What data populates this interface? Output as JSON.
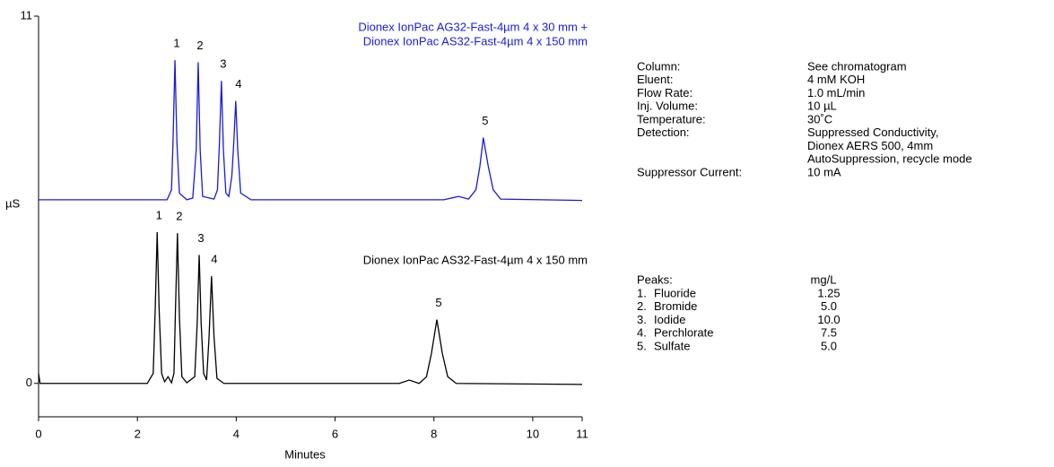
{
  "chart_data": {
    "type": "line",
    "xlabel": "Minutes",
    "ylabel": "µS",
    "xlim": [
      0,
      11
    ],
    "xticks": [
      0,
      2,
      4,
      6,
      8,
      10,
      11
    ],
    "ylim": [
      -1,
      11
    ],
    "yticks": [
      0,
      11
    ],
    "series": [
      {
        "name": [
          "Dionex IonPac AG32-Fast-4µm  4 x 30 mm +",
          "Dionex IonPac AS32-Fast-4µm  4 x 150 mm"
        ],
        "color": "#1a1adc",
        "peak_labels": [
          "1",
          "2",
          "3",
          "4",
          "5"
        ],
        "x": [
          0,
          2.6,
          2.69,
          2.72,
          2.76,
          2.8,
          2.85,
          3.0,
          3.12,
          3.19,
          3.23,
          3.27,
          3.32,
          3.55,
          3.62,
          3.66,
          3.7,
          3.74,
          3.79,
          3.85,
          3.91,
          3.95,
          3.99,
          4.03,
          4.09,
          4.3,
          8.2,
          8.5,
          8.7,
          8.85,
          8.93,
          9.0,
          9.1,
          9.2,
          9.35,
          11
        ],
        "values": [
          5.5,
          5.5,
          5.8,
          7.2,
          9.68,
          7.2,
          5.7,
          5.5,
          5.55,
          7.0,
          9.62,
          7.0,
          5.6,
          5.52,
          5.8,
          7.2,
          9.06,
          7.0,
          5.7,
          5.6,
          6.2,
          7.2,
          8.46,
          7.0,
          5.7,
          5.5,
          5.5,
          5.6,
          5.52,
          5.8,
          6.5,
          7.36,
          6.5,
          5.8,
          5.52,
          5.48
        ]
      },
      {
        "name": [
          "Dionex IonPac AS32-Fast-4µm  4 x 150 mm"
        ],
        "color": "#000000",
        "peak_labels": [
          "1",
          "2",
          "3",
          "4",
          "5"
        ],
        "x": [
          0,
          0.03,
          2.2,
          2.32,
          2.36,
          2.4,
          2.44,
          2.49,
          2.55,
          2.62,
          2.69,
          2.74,
          2.77,
          2.81,
          2.85,
          2.9,
          3.0,
          3.16,
          3.21,
          3.25,
          3.29,
          3.34,
          3.4,
          3.45,
          3.5,
          3.55,
          3.61,
          3.75,
          7.3,
          7.5,
          7.7,
          7.85,
          7.95,
          8.06,
          8.17,
          8.28,
          8.45,
          11
        ],
        "values": [
          0.3,
          0,
          0,
          0.3,
          2.2,
          4.53,
          2.2,
          0.3,
          0.05,
          0.2,
          0.02,
          0.3,
          2.2,
          4.5,
          2.0,
          0.2,
          0.02,
          0.2,
          1.8,
          3.85,
          1.8,
          0.3,
          0.1,
          1.4,
          3.21,
          1.4,
          0.15,
          0,
          0,
          0.1,
          0,
          0.2,
          0.9,
          1.91,
          0.9,
          0.2,
          0,
          -0.03
        ]
      }
    ],
    "conditions": [
      {
        "label": "Column:",
        "value": [
          "See chromatogram"
        ]
      },
      {
        "label": "Eluent:",
        "value": [
          "4 mM KOH"
        ]
      },
      {
        "label": "Flow Rate:",
        "value": [
          "1.0 mL/min"
        ]
      },
      {
        "label": "Inj. Volume:",
        "value": [
          "10 µL"
        ]
      },
      {
        "label": "Temperature:",
        "value": [
          "30˚C"
        ]
      },
      {
        "label": "Detection:",
        "value": [
          "Suppressed Conductivity,",
          "Dionex AERS 500, 4mm",
          "AutoSuppression, recycle mode"
        ]
      },
      {
        "label": "Suppressor Current:",
        "value": [
          "10 mA"
        ]
      }
    ],
    "peaks_table": {
      "header": [
        "Peaks:",
        "mg/L"
      ],
      "rows": [
        [
          "1.",
          "Fluoride",
          "1.25"
        ],
        [
          "2.",
          "Bromide",
          "5.0"
        ],
        [
          "3.",
          "Iodide",
          "10.0"
        ],
        [
          "4.",
          "Perchlorate",
          "7.5"
        ],
        [
          "5.",
          "Sulfate",
          "5.0"
        ]
      ]
    }
  }
}
